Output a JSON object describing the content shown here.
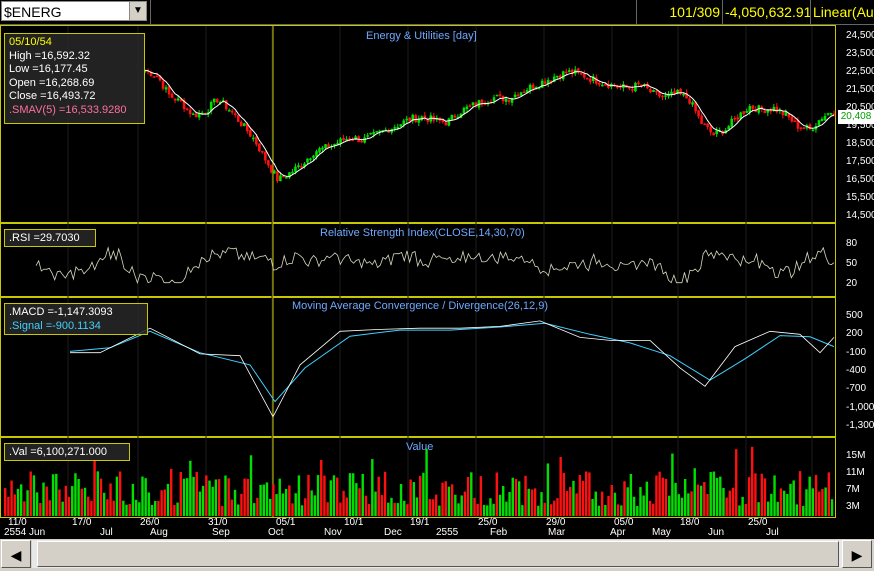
{
  "toolbar": {
    "symbol": "$ENERG",
    "position": "101/309",
    "value": "-4,050,632.91",
    "scale": "Linear(Aut"
  },
  "price_panel": {
    "title": "Energy & Utilities [day]",
    "info": {
      "date": "05/10/54",
      "high": "High =16,592.32",
      "low": "Low =16,177.45",
      "open": "Open =16,268.69",
      "close": "Close =16,493.72",
      "smav": ".SMAV(5) =16,533.9280"
    },
    "last_price_tag": "20,408",
    "axis": [
      "24,500",
      "23,500",
      "22,500",
      "21,500",
      "20,500",
      "19,500",
      "18,500",
      "17,500",
      "16,500",
      "15,500",
      "14,500"
    ]
  },
  "rsi_panel": {
    "title": "Relative Strength Index(CLOSE,14,30,70)",
    "info": ".RSI =29.7030",
    "axis": [
      "80",
      "50",
      "20"
    ]
  },
  "macd_panel": {
    "title": "Moving Average Convergence / Divergence(26,12,9)",
    "macd": ".MACD =-1,147.3093",
    "signal": ".Signal =-900.1134",
    "axis": [
      "500",
      "200",
      "-100",
      "-400",
      "-700",
      "-1,000",
      "-1,300"
    ]
  },
  "value_panel": {
    "title": "Value",
    "info": ".Val =6,100,271.000",
    "axis": [
      "15M",
      "11M",
      "7M",
      "3M"
    ]
  },
  "dates_top": [
    "11/0",
    "17/0",
    "26/0",
    "31/0",
    "05/1",
    "10/1",
    "19/1",
    "25/0",
    "29/0",
    "05/0",
    "18/0",
    "25/0"
  ],
  "dates_bottom": [
    "2554 Jun",
    "Jul",
    "Aug",
    "Sep",
    "Oct",
    "Nov",
    "Dec",
    "2555",
    "Feb",
    "Mar",
    "Apr",
    "May",
    "Jun",
    "Jul"
  ],
  "colors": {
    "up": "#00e000",
    "down": "#ff1010",
    "accent": "#ffff00",
    "title": "#6fa8ff",
    "macd": "#ffffff",
    "signal": "#40d0ff"
  },
  "chart_data": {
    "type": "line",
    "title": "Energy & Utilities [day]",
    "close": [
      22600,
      22300,
      21200,
      20800,
      20100,
      20300,
      21000,
      20400,
      19600,
      18800,
      17600,
      16500,
      16900,
      17400,
      18100,
      18300,
      18600,
      18900,
      18700,
      19000,
      19300,
      19600,
      19900,
      20000,
      19800,
      19700,
      20300,
      20600,
      20900,
      21100,
      21000,
      21400,
      21700,
      22000,
      22300,
      22500,
      22400,
      22100,
      21900,
      21700,
      21600,
      21800,
      21300,
      21100,
      21300,
      21000,
      19700,
      19000,
      19300,
      20000,
      20600,
      20400,
      20500,
      20100,
      19500,
      19300,
      20000,
      20400
    ],
    "ylim": [
      14500,
      24500
    ]
  }
}
